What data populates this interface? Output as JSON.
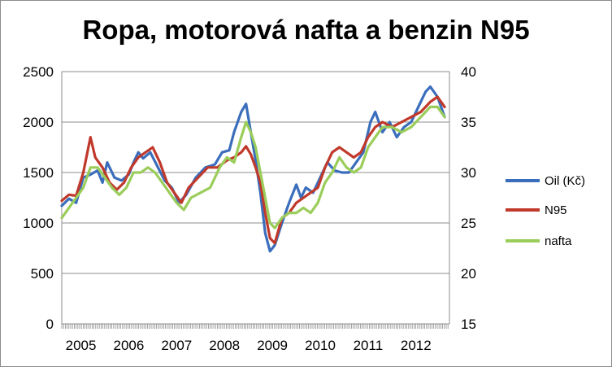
{
  "chart_data": {
    "type": "line",
    "title": "Ropa, motorová nafta a benzin N95",
    "x_ticks": [
      "2005",
      "2006",
      "2007",
      "2008",
      "2009",
      "2010",
      "2011",
      "2012"
    ],
    "left_axis": {
      "ylim": [
        0,
        2500
      ],
      "ticks": [
        "0",
        "500",
        "1000",
        "1500",
        "2000",
        "2500"
      ]
    },
    "right_axis": {
      "ylim": [
        15,
        40
      ],
      "ticks": [
        "15",
        "20",
        "25",
        "30",
        "35",
        "40"
      ]
    },
    "grid": true,
    "legend_position": "right",
    "series": [
      {
        "name": "Oil (Kč)",
        "axis": "left",
        "color": "#3a6ebc",
        "points": [
          [
            2004.6,
            1170
          ],
          [
            2004.75,
            1240
          ],
          [
            2004.9,
            1200
          ],
          [
            2005.05,
            1450
          ],
          [
            2005.2,
            1480
          ],
          [
            2005.35,
            1520
          ],
          [
            2005.45,
            1400
          ],
          [
            2005.55,
            1600
          ],
          [
            2005.7,
            1450
          ],
          [
            2005.85,
            1420
          ],
          [
            2006.0,
            1480
          ],
          [
            2006.1,
            1600
          ],
          [
            2006.2,
            1700
          ],
          [
            2006.3,
            1640
          ],
          [
            2006.45,
            1700
          ],
          [
            2006.6,
            1560
          ],
          [
            2006.75,
            1420
          ],
          [
            2006.9,
            1350
          ],
          [
            2007.05,
            1200
          ],
          [
            2007.2,
            1280
          ],
          [
            2007.4,
            1450
          ],
          [
            2007.6,
            1550
          ],
          [
            2007.8,
            1580
          ],
          [
            2007.95,
            1700
          ],
          [
            2008.1,
            1720
          ],
          [
            2008.2,
            1900
          ],
          [
            2008.35,
            2100
          ],
          [
            2008.45,
            2180
          ],
          [
            2008.55,
            1900
          ],
          [
            2008.65,
            1620
          ],
          [
            2008.75,
            1300
          ],
          [
            2008.85,
            900
          ],
          [
            2008.95,
            720
          ],
          [
            2009.05,
            780
          ],
          [
            2009.2,
            1000
          ],
          [
            2009.35,
            1200
          ],
          [
            2009.5,
            1380
          ],
          [
            2009.6,
            1250
          ],
          [
            2009.7,
            1350
          ],
          [
            2009.85,
            1300
          ],
          [
            2010.0,
            1450
          ],
          [
            2010.15,
            1600
          ],
          [
            2010.3,
            1520
          ],
          [
            2010.45,
            1500
          ],
          [
            2010.6,
            1500
          ],
          [
            2010.75,
            1600
          ],
          [
            2010.9,
            1700
          ],
          [
            2011.05,
            2000
          ],
          [
            2011.15,
            2100
          ],
          [
            2011.3,
            1900
          ],
          [
            2011.45,
            2000
          ],
          [
            2011.6,
            1850
          ],
          [
            2011.75,
            1950
          ],
          [
            2011.9,
            2000
          ],
          [
            2012.05,
            2150
          ],
          [
            2012.2,
            2300
          ],
          [
            2012.3,
            2350
          ],
          [
            2012.45,
            2250
          ],
          [
            2012.6,
            2050
          ]
        ]
      },
      {
        "name": "N95",
        "axis": "right",
        "color": "#c0392b",
        "points": [
          [
            2004.6,
            27.2
          ],
          [
            2004.75,
            27.8
          ],
          [
            2004.9,
            27.7
          ],
          [
            2005.05,
            30.0
          ],
          [
            2005.2,
            33.5
          ],
          [
            2005.3,
            31.5
          ],
          [
            2005.45,
            30.5
          ],
          [
            2005.6,
            29.0
          ],
          [
            2005.75,
            28.3
          ],
          [
            2005.9,
            29.0
          ],
          [
            2006.05,
            30.5
          ],
          [
            2006.2,
            31.5
          ],
          [
            2006.35,
            32.0
          ],
          [
            2006.5,
            32.5
          ],
          [
            2006.65,
            31.0
          ],
          [
            2006.8,
            29.0
          ],
          [
            2006.95,
            28.0
          ],
          [
            2007.1,
            27.0
          ],
          [
            2007.25,
            28.5
          ],
          [
            2007.45,
            29.5
          ],
          [
            2007.65,
            30.5
          ],
          [
            2007.85,
            30.5
          ],
          [
            2008.05,
            31.2
          ],
          [
            2008.2,
            31.5
          ],
          [
            2008.35,
            32.0
          ],
          [
            2008.45,
            32.6
          ],
          [
            2008.55,
            31.8
          ],
          [
            2008.65,
            30.5
          ],
          [
            2008.75,
            29.0
          ],
          [
            2008.85,
            26.0
          ],
          [
            2008.95,
            23.5
          ],
          [
            2009.05,
            23.0
          ],
          [
            2009.2,
            25.5
          ],
          [
            2009.35,
            26.0
          ],
          [
            2009.5,
            27.0
          ],
          [
            2009.65,
            27.5
          ],
          [
            2009.8,
            28.0
          ],
          [
            2009.95,
            28.5
          ],
          [
            2010.1,
            30.5
          ],
          [
            2010.25,
            32.0
          ],
          [
            2010.4,
            32.5
          ],
          [
            2010.55,
            32.0
          ],
          [
            2010.7,
            31.5
          ],
          [
            2010.85,
            32.0
          ],
          [
            2011.0,
            33.5
          ],
          [
            2011.15,
            34.5
          ],
          [
            2011.3,
            35.0
          ],
          [
            2011.5,
            34.5
          ],
          [
            2011.7,
            35.0
          ],
          [
            2011.9,
            35.5
          ],
          [
            2012.1,
            36.0
          ],
          [
            2012.3,
            37.0
          ],
          [
            2012.45,
            37.5
          ],
          [
            2012.6,
            36.5
          ]
        ]
      },
      {
        "name": "nafta",
        "axis": "right",
        "color": "#9acd5a",
        "points": [
          [
            2004.6,
            25.5
          ],
          [
            2004.75,
            26.5
          ],
          [
            2004.9,
            27.5
          ],
          [
            2005.05,
            28.5
          ],
          [
            2005.2,
            30.5
          ],
          [
            2005.35,
            30.5
          ],
          [
            2005.5,
            29.5
          ],
          [
            2005.65,
            28.5
          ],
          [
            2005.8,
            27.8
          ],
          [
            2005.95,
            28.5
          ],
          [
            2006.1,
            30.0
          ],
          [
            2006.25,
            30.0
          ],
          [
            2006.4,
            30.5
          ],
          [
            2006.55,
            30.0
          ],
          [
            2006.7,
            29.0
          ],
          [
            2006.85,
            28.0
          ],
          [
            2007.0,
            27.0
          ],
          [
            2007.15,
            26.3
          ],
          [
            2007.3,
            27.5
          ],
          [
            2007.5,
            28.0
          ],
          [
            2007.7,
            28.5
          ],
          [
            2007.9,
            30.5
          ],
          [
            2008.05,
            31.5
          ],
          [
            2008.2,
            31.0
          ],
          [
            2008.35,
            33.5
          ],
          [
            2008.45,
            35.0
          ],
          [
            2008.55,
            34.0
          ],
          [
            2008.65,
            32.5
          ],
          [
            2008.75,
            30.0
          ],
          [
            2008.85,
            27.5
          ],
          [
            2008.95,
            25.0
          ],
          [
            2009.05,
            24.5
          ],
          [
            2009.2,
            25.5
          ],
          [
            2009.35,
            26.0
          ],
          [
            2009.5,
            26.0
          ],
          [
            2009.65,
            26.5
          ],
          [
            2009.8,
            26.0
          ],
          [
            2009.95,
            27.0
          ],
          [
            2010.1,
            29.0
          ],
          [
            2010.25,
            30.0
          ],
          [
            2010.4,
            31.5
          ],
          [
            2010.55,
            30.5
          ],
          [
            2010.7,
            30.0
          ],
          [
            2010.85,
            30.5
          ],
          [
            2011.0,
            32.5
          ],
          [
            2011.15,
            33.5
          ],
          [
            2011.3,
            34.5
          ],
          [
            2011.5,
            34.5
          ],
          [
            2011.7,
            34.0
          ],
          [
            2011.9,
            34.5
          ],
          [
            2012.1,
            35.5
          ],
          [
            2012.3,
            36.5
          ],
          [
            2012.45,
            36.5
          ],
          [
            2012.6,
            35.5
          ]
        ]
      }
    ]
  }
}
